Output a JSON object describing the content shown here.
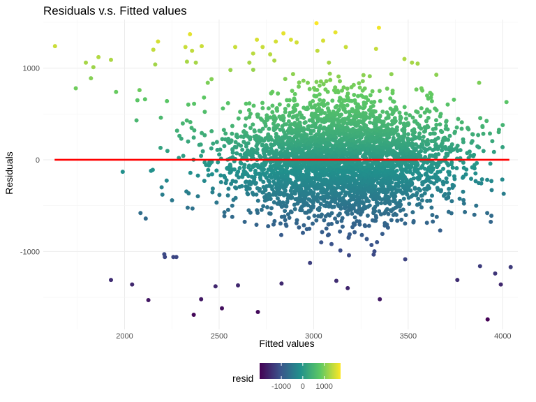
{
  "chart_data": {
    "type": "scatter",
    "title": "Residuals v.s. Fitted values",
    "xlabel": "Fitted values",
    "ylabel": "Residuals",
    "xlim": [
      1570,
      4080
    ],
    "ylim": [
      -1850,
      1530
    ],
    "x_ticks": [
      2000,
      2500,
      3000,
      3500,
      4000
    ],
    "x_tick_labels": [
      "2000",
      "2500",
      "3000",
      "3500",
      "4000"
    ],
    "y_ticks": [
      -1000,
      0,
      1000
    ],
    "y_tick_labels": [
      "-1000",
      "0",
      "1000"
    ],
    "grid": true,
    "reference_line": {
      "y": 0,
      "x_start": 1630,
      "x_end": 4035,
      "color": "#ff0000"
    },
    "points_note": "Dense cloud of roughly 4000 points centered near fitted 3000-3300, residual 0; listed points are the visible outliers and representative points",
    "points": [
      {
        "x": 1632,
        "y": 1240
      },
      {
        "x": 1742,
        "y": 780
      },
      {
        "x": 1795,
        "y": 1060
      },
      {
        "x": 1822,
        "y": 890
      },
      {
        "x": 1835,
        "y": 1010
      },
      {
        "x": 1862,
        "y": 1120
      },
      {
        "x": 1928,
        "y": 1090
      },
      {
        "x": 1955,
        "y": 740
      },
      {
        "x": 1990,
        "y": -130
      },
      {
        "x": 1928,
        "y": -1310
      },
      {
        "x": 2040,
        "y": -1360
      },
      {
        "x": 2063,
        "y": 430
      },
      {
        "x": 2068,
        "y": 650
      },
      {
        "x": 2079,
        "y": 760
      },
      {
        "x": 2084,
        "y": -580
      },
      {
        "x": 2108,
        "y": 660
      },
      {
        "x": 2112,
        "y": -640
      },
      {
        "x": 2126,
        "y": -1530
      },
      {
        "x": 2140,
        "y": -120
      },
      {
        "x": 2149,
        "y": -110
      },
      {
        "x": 2152,
        "y": 1200
      },
      {
        "x": 2162,
        "y": 1040
      },
      {
        "x": 2177,
        "y": 1290
      },
      {
        "x": 2190,
        "y": 130
      },
      {
        "x": 2192,
        "y": 460
      },
      {
        "x": 2196,
        "y": -300
      },
      {
        "x": 2200,
        "y": -380
      },
      {
        "x": 2210,
        "y": -1030
      },
      {
        "x": 2213,
        "y": -1060
      },
      {
        "x": 2224,
        "y": 640
      },
      {
        "x": 2258,
        "y": -1060
      },
      {
        "x": 2274,
        "y": -1060
      },
      {
        "x": 2290,
        "y": 260
      },
      {
        "x": 2300,
        "y": 230
      },
      {
        "x": 2322,
        "y": 1230
      },
      {
        "x": 2330,
        "y": 1070
      },
      {
        "x": 2336,
        "y": 200
      },
      {
        "x": 2346,
        "y": 1370
      },
      {
        "x": 2357,
        "y": 1190
      },
      {
        "x": 2366,
        "y": -1690
      },
      {
        "x": 2377,
        "y": 1060
      },
      {
        "x": 2408,
        "y": 1240
      },
      {
        "x": 2405,
        "y": -1520
      },
      {
        "x": 2420,
        "y": 680
      },
      {
        "x": 2440,
        "y": 840
      },
      {
        "x": 2460,
        "y": 880
      },
      {
        "x": 2481,
        "y": -1380
      },
      {
        "x": 2515,
        "y": -1620
      },
      {
        "x": 2520,
        "y": 560
      },
      {
        "x": 2560,
        "y": 980
      },
      {
        "x": 2585,
        "y": 1230
      },
      {
        "x": 2600,
        "y": -1370
      },
      {
        "x": 2660,
        "y": 1060
      },
      {
        "x": 2680,
        "y": 1160
      },
      {
        "x": 2700,
        "y": 1310
      },
      {
        "x": 2705,
        "y": -1660
      },
      {
        "x": 2730,
        "y": 1230
      },
      {
        "x": 2770,
        "y": 1150
      },
      {
        "x": 2800,
        "y": 1290
      },
      {
        "x": 2840,
        "y": 1380
      },
      {
        "x": 2880,
        "y": 1310
      },
      {
        "x": 2910,
        "y": 1280
      },
      {
        "x": 2830,
        "y": -1350
      },
      {
        "x": 3015,
        "y": 1490
      },
      {
        "x": 3020,
        "y": 1190
      },
      {
        "x": 3050,
        "y": 1300
      },
      {
        "x": 3115,
        "y": 1390
      },
      {
        "x": 3120,
        "y": -1320
      },
      {
        "x": 3170,
        "y": 1230
      },
      {
        "x": 3180,
        "y": -1400
      },
      {
        "x": 3330,
        "y": 1210
      },
      {
        "x": 3345,
        "y": 1440
      },
      {
        "x": 3350,
        "y": -1520
      },
      {
        "x": 3480,
        "y": 1100
      },
      {
        "x": 3520,
        "y": 1060
      },
      {
        "x": 3550,
        "y": 1050
      },
      {
        "x": 3570,
        "y": 780
      },
      {
        "x": 3600,
        "y": 700
      },
      {
        "x": 3620,
        "y": 680
      },
      {
        "x": 3650,
        "y": 540
      },
      {
        "x": 3700,
        "y": 370
      },
      {
        "x": 3720,
        "y": 260
      },
      {
        "x": 3760,
        "y": -1310
      },
      {
        "x": 3800,
        "y": -570
      },
      {
        "x": 3840,
        "y": 280
      },
      {
        "x": 3850,
        "y": -600
      },
      {
        "x": 3870,
        "y": 270
      },
      {
        "x": 3875,
        "y": 840
      },
      {
        "x": 3880,
        "y": -1160
      },
      {
        "x": 3918,
        "y": -580
      },
      {
        "x": 3940,
        "y": -610
      },
      {
        "x": 3960,
        "y": -1240
      },
      {
        "x": 3920,
        "y": -1740
      },
      {
        "x": 3990,
        "y": -1360
      },
      {
        "x": 4000,
        "y": 380
      },
      {
        "x": 4005,
        "y": -370
      },
      {
        "x": 4020,
        "y": 630
      },
      {
        "x": 4042,
        "y": -1170
      }
    ],
    "color_scale": {
      "variable": "resid",
      "palette": "viridis",
      "stops": [
        "#440154",
        "#3b528b",
        "#21908c",
        "#5dc863",
        "#fde725"
      ],
      "range": [
        -1750,
        1500
      ]
    },
    "legend": {
      "title": "resid",
      "position": "bottom",
      "ticks": [
        -1000,
        0,
        1000
      ],
      "tick_labels": [
        "-1000",
        "0",
        "1000"
      ]
    }
  }
}
